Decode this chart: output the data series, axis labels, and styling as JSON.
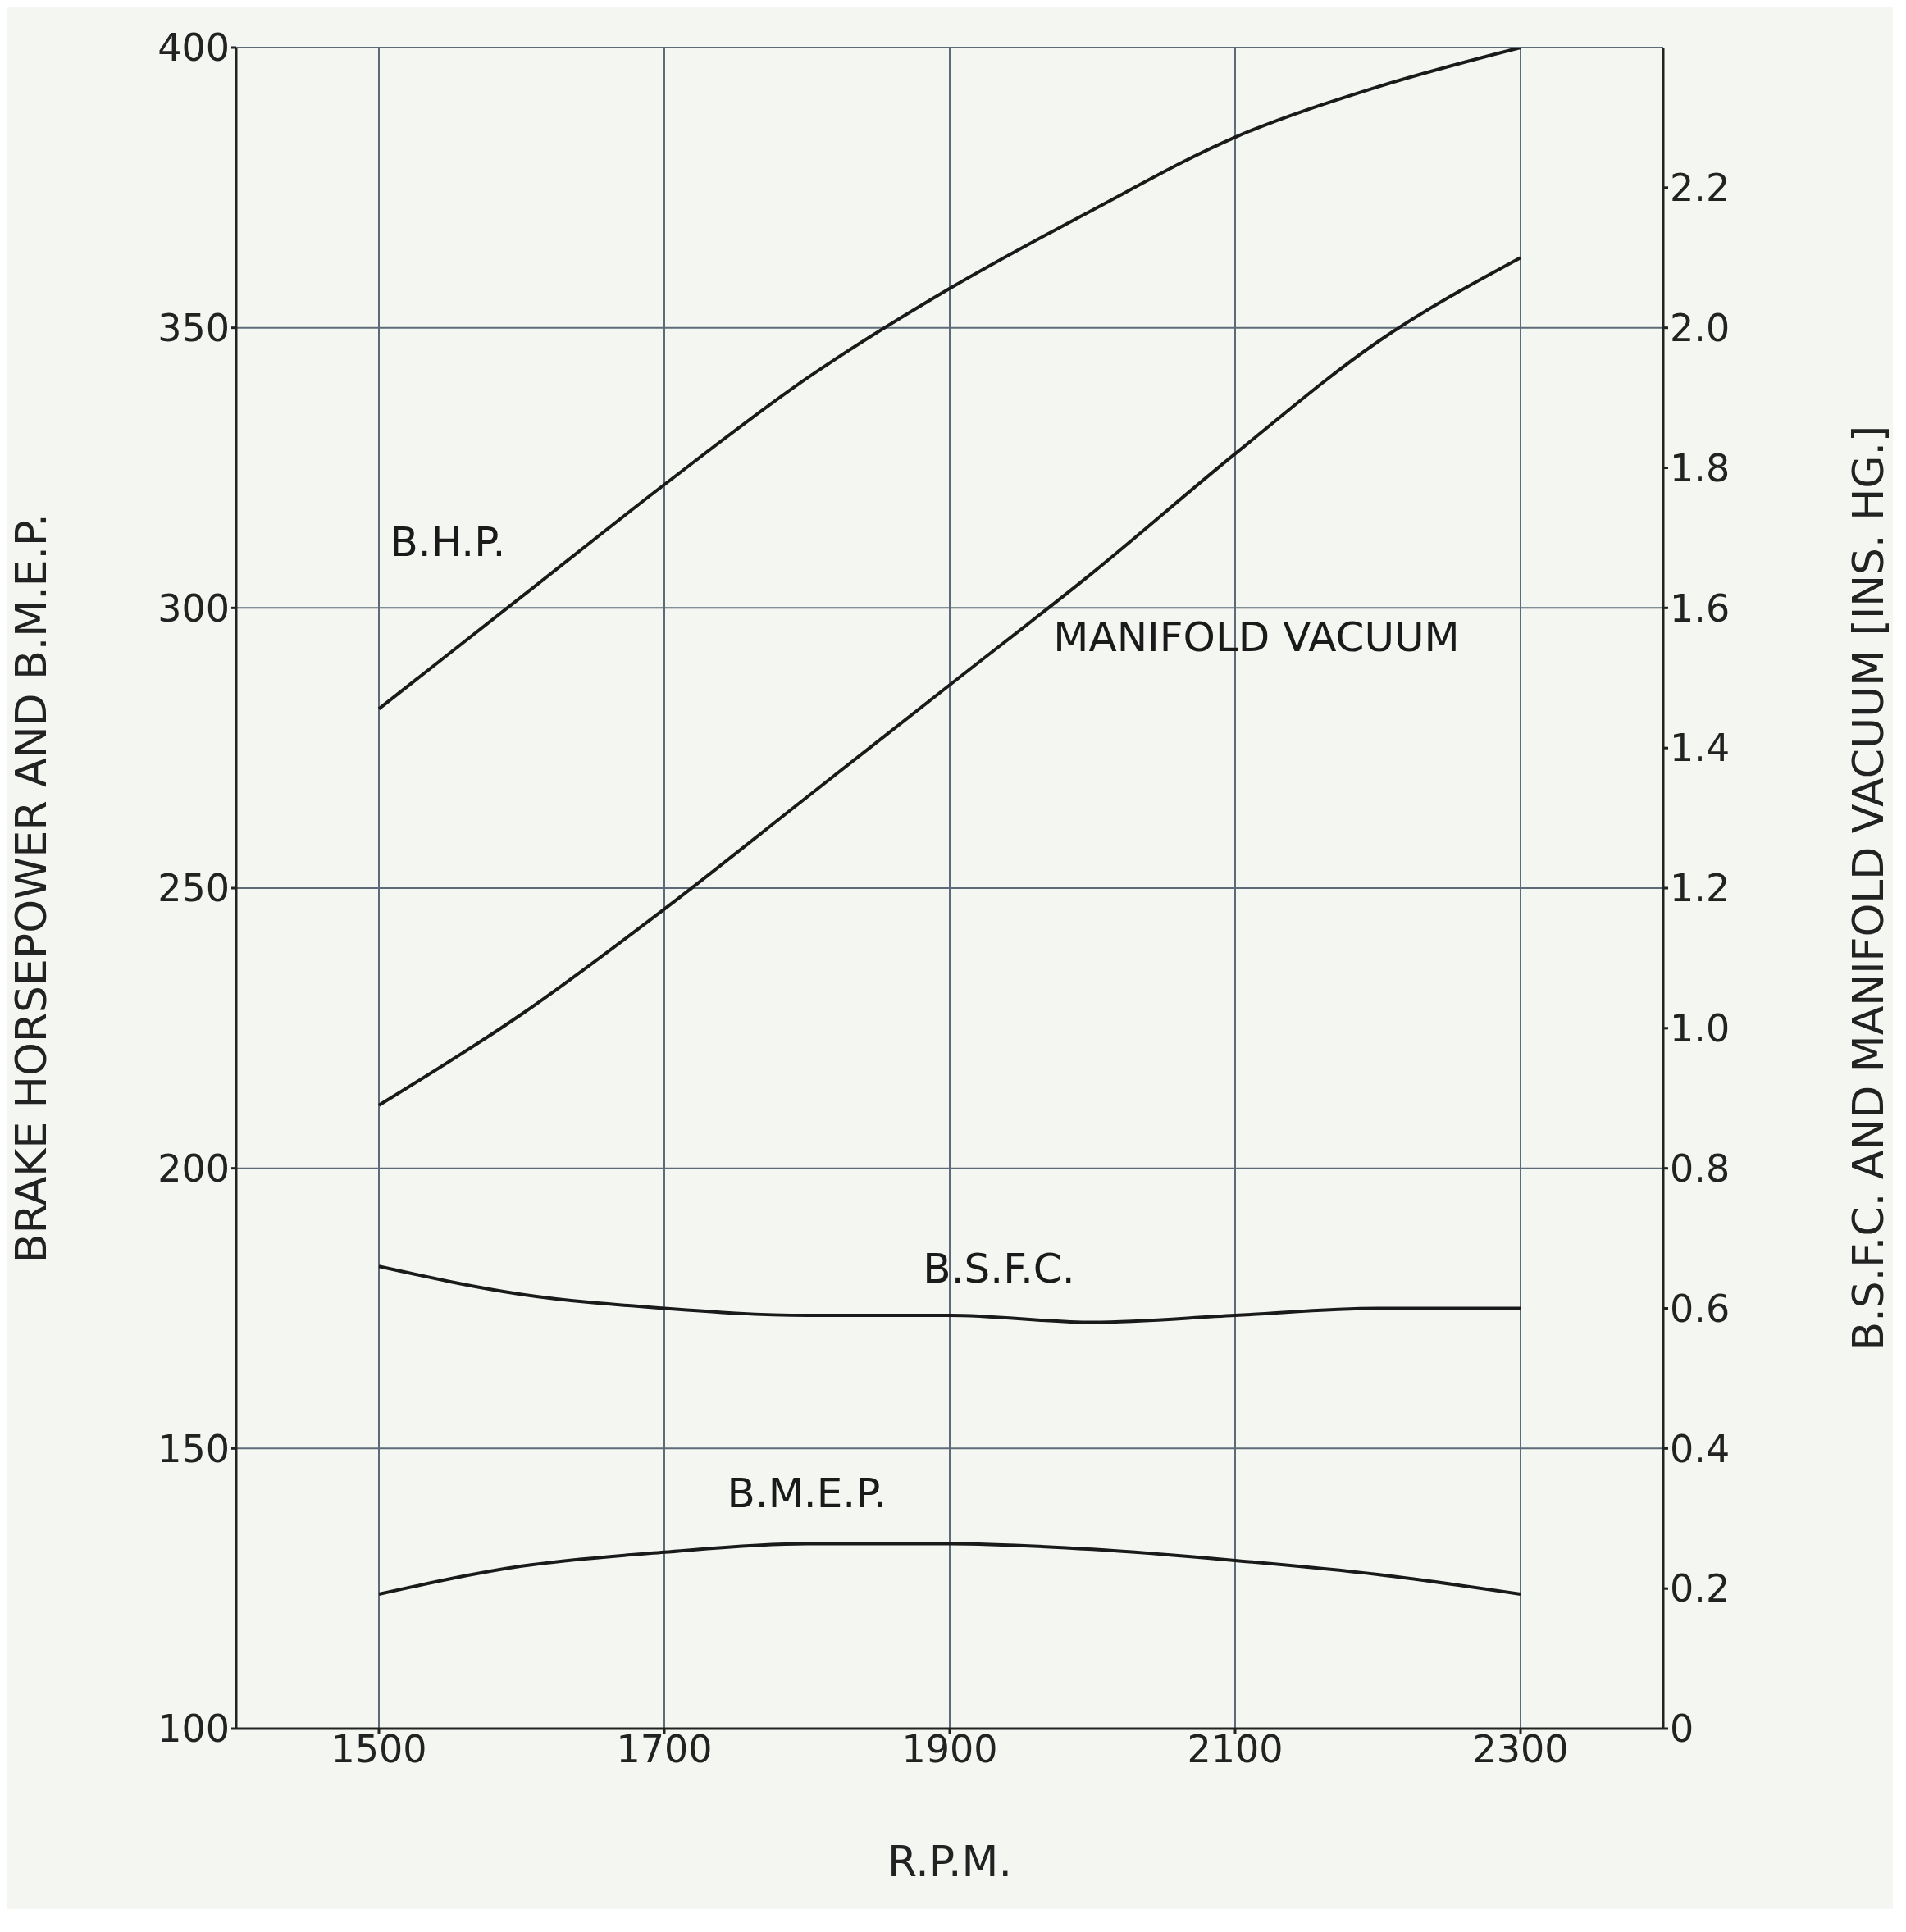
{
  "chart_data": {
    "type": "line",
    "xlabel": "R.P.M.",
    "ylabel": "BRAKE HORSEPOWER AND B.M.E.P.",
    "y2label": "B.S.F.C. AND MANIFOLD VACUUM [INS. HG.]",
    "x": [
      1500,
      1600,
      1700,
      1800,
      1900,
      2000,
      2100,
      2200,
      2300
    ],
    "series": [
      {
        "name": "B.H.P.",
        "color": "#1a1a1a",
        "axis": "y",
        "values": [
          282,
          302,
          322,
          341,
          357,
          371,
          384,
          393,
          400
        ]
      },
      {
        "name": "MANIFOLD VACUUM",
        "color": "#1a1a1a",
        "axis": "y2",
        "values": [
          0.89,
          1.02,
          1.17,
          1.33,
          1.49,
          1.65,
          1.82,
          1.98,
          2.1
        ]
      },
      {
        "name": "B.S.F.C.",
        "color": "#1a1a1a",
        "axis": "y2",
        "values": [
          0.66,
          0.62,
          0.6,
          0.59,
          0.59,
          0.58,
          0.59,
          0.6,
          0.6
        ]
      },
      {
        "name": "B.M.E.P.",
        "color": "#1a1a1a",
        "axis": "y",
        "values": [
          124,
          129,
          131.5,
          133,
          133,
          132,
          130,
          127.5,
          124
        ]
      }
    ],
    "xlim": [
      1400,
      2400
    ],
    "xticks": [
      1500,
      1700,
      1900,
      2100,
      2300
    ],
    "ylim": [
      100,
      400
    ],
    "yticks": [
      100,
      150,
      200,
      250,
      300,
      350,
      400
    ],
    "y2lim": [
      0,
      2.4
    ],
    "y2ticks": [
      0,
      0.2,
      0.4,
      0.6,
      0.8,
      {
        "value": 1,
        "label": "1.0"
      },
      1.2,
      1.4,
      1.6,
      1.8,
      {
        "value": 2,
        "label": "2.0"
      },
      2.2
    ],
    "grid": true,
    "marker": "none",
    "line_style": "solid"
  }
}
